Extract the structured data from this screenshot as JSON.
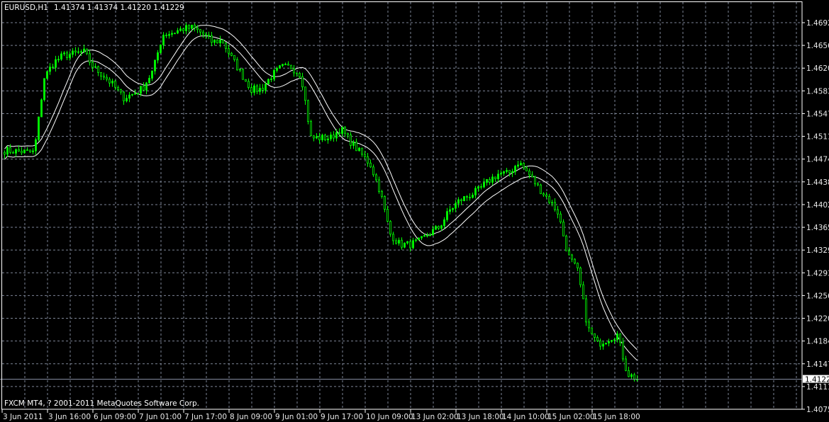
{
  "header": {
    "symbol": "EURUSD,H1",
    "ohlc": "1.41374 1.41374 1.41220 1.41229"
  },
  "footer": {
    "copyright": "FXCM MT4, ? 2001-2011 MetaQuotes Software Corp."
  },
  "colors": {
    "background": "#000000",
    "candles": "#00ff00",
    "bands": "#ffffff",
    "grid": "#7d8596",
    "axis": "#ffffff"
  },
  "chart_data": {
    "type": "candlestick",
    "symbol": "EURUSD",
    "timeframe": "H1",
    "bars": 224,
    "ylim": [
      1.4075,
      1.4692
    ],
    "grid": true,
    "current_price": "1.41229",
    "y_tick_labels": [
      "1.46920",
      "1.46560",
      "1.46200",
      "1.45830",
      "1.45470",
      "1.45110",
      "1.44740",
      "1.44380",
      "1.44020",
      "1.43650",
      "1.43290",
      "1.42930",
      "1.42560",
      "1.42200",
      "1.41840",
      "1.41470",
      "1.41110",
      "1.40750"
    ],
    "x_tick_labels": [
      "3 Jun 2011",
      "3 Jun 16:00",
      "6 Jun 09:00",
      "7 Jun 01:00",
      "7 Jun 17:00",
      "8 Jun 09:00",
      "9 Jun 01:00",
      "9 Jun 17:00",
      "10 Jun 09:00",
      "13 Jun 02:00",
      "13 Jun 18:00",
      "14 Jun 10:00",
      "15 Jun 02:00",
      "15 Jun 18:00"
    ],
    "close_samples": [
      1.4488,
      1.4487,
      1.4486,
      1.4485,
      1.4604,
      1.4629,
      1.464,
      1.4642,
      1.4646,
      1.462,
      1.4608,
      1.4592,
      1.4572,
      1.4578,
      1.4588,
      1.4615,
      1.4673,
      1.4676,
      1.4682,
      1.4684,
      1.4675,
      1.4661,
      1.4664,
      1.4635,
      1.4609,
      1.4585,
      1.4586,
      1.4607,
      1.4621,
      1.4621,
      1.4609,
      1.4508,
      1.4508,
      1.4508,
      1.4523,
      1.4502,
      1.4484,
      1.4466,
      1.4423,
      1.4355,
      1.4338,
      1.4338,
      1.4343,
      1.4356,
      1.4366,
      1.4392,
      1.4408,
      1.4416,
      1.4425,
      1.444,
      1.4451,
      1.4451,
      1.447,
      1.4451,
      1.4429,
      1.4411,
      1.4389,
      1.4321,
      1.4295,
      1.4205,
      1.4179,
      1.4187,
      1.4194,
      1.4132,
      1.41229
    ],
    "indicators": [
      "upper-envelope",
      "lower-envelope"
    ]
  }
}
